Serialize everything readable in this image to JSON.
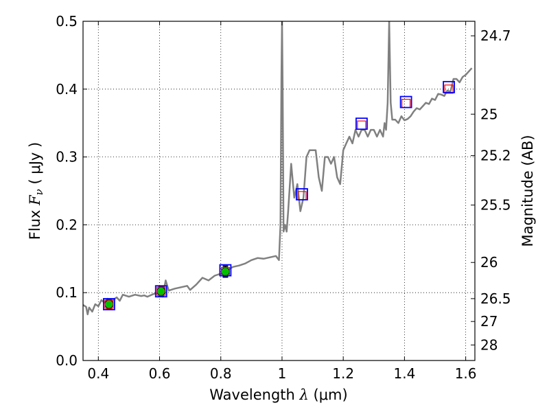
{
  "chart_data": {
    "type": "line",
    "xlabel_prefix": "Wavelength  ",
    "xlabel_symbol": "λ",
    "xlabel_unit": " (μm)",
    "ylabel_prefix": "Flux  ",
    "ylabel_symbol": "F",
    "ylabel_sub": "ν",
    "ylabel_unit": "  ( μJy )",
    "y2label": "Magnitude (AB)",
    "xlim": [
      0.35,
      1.63
    ],
    "ylim": [
      0.0,
      0.5
    ],
    "grid": true,
    "x_ticks": [
      0.4,
      0.6,
      0.8,
      1.0,
      1.2,
      1.4,
      1.6
    ],
    "x_tick_labels": [
      "0.4",
      "0.6",
      "0.8",
      "1",
      "1.2",
      "1.4",
      "1.6"
    ],
    "y_ticks": [
      0.0,
      0.1,
      0.2,
      0.3,
      0.4,
      0.5
    ],
    "y_tick_labels": [
      "0.0",
      "0.1",
      "0.2",
      "0.3",
      "0.4",
      "0.5"
    ],
    "y2_ticks": [
      {
        "label": "24.7",
        "flux": 0.4786
      },
      {
        "label": "25",
        "flux": 0.3631
      },
      {
        "label": "25.2",
        "flux": 0.302
      },
      {
        "label": "25.5",
        "flux": 0.2291
      },
      {
        "label": "26",
        "flux": 0.1445
      },
      {
        "label": "26.5",
        "flux": 0.0912
      },
      {
        "label": "27",
        "flux": 0.0575
      },
      {
        "label": "28",
        "flux": 0.0229
      }
    ],
    "series": [
      {
        "kind": "model-spectrum",
        "color": "#808080",
        "x": [
          0.35,
          0.36,
          0.365,
          0.37,
          0.38,
          0.39,
          0.4,
          0.41,
          0.42,
          0.43,
          0.44,
          0.45,
          0.46,
          0.47,
          0.48,
          0.5,
          0.52,
          0.54,
          0.55,
          0.56,
          0.58,
          0.6,
          0.61,
          0.62,
          0.63,
          0.65,
          0.67,
          0.69,
          0.7,
          0.72,
          0.74,
          0.76,
          0.78,
          0.8,
          0.82,
          0.84,
          0.86,
          0.88,
          0.9,
          0.92,
          0.94,
          0.96,
          0.98,
          0.99,
          0.995,
          0.998,
          1.0,
          1.002,
          1.005,
          1.01,
          1.015,
          1.02,
          1.03,
          1.04,
          1.05,
          1.06,
          1.07,
          1.08,
          1.09,
          1.1,
          1.11,
          1.12,
          1.13,
          1.14,
          1.15,
          1.16,
          1.17,
          1.18,
          1.19,
          1.2,
          1.21,
          1.22,
          1.23,
          1.24,
          1.25,
          1.26,
          1.27,
          1.28,
          1.29,
          1.3,
          1.31,
          1.32,
          1.33,
          1.335,
          1.34,
          1.345,
          1.35,
          1.355,
          1.36,
          1.37,
          1.38,
          1.39,
          1.4,
          1.41,
          1.42,
          1.43,
          1.44,
          1.45,
          1.46,
          1.47,
          1.48,
          1.49,
          1.5,
          1.51,
          1.52,
          1.53,
          1.54,
          1.55,
          1.56,
          1.57,
          1.58,
          1.59,
          1.6,
          1.61,
          1.62
        ],
        "y": [
          0.082,
          0.079,
          0.068,
          0.078,
          0.072,
          0.083,
          0.08,
          0.089,
          0.085,
          0.091,
          0.086,
          0.09,
          0.093,
          0.088,
          0.097,
          0.094,
          0.097,
          0.095,
          0.096,
          0.094,
          0.098,
          0.1,
          0.094,
          0.118,
          0.103,
          0.106,
          0.108,
          0.11,
          0.104,
          0.112,
          0.122,
          0.118,
          0.125,
          0.128,
          0.133,
          0.138,
          0.14,
          0.143,
          0.148,
          0.151,
          0.15,
          0.152,
          0.154,
          0.148,
          0.2,
          0.42,
          0.5,
          0.4,
          0.19,
          0.2,
          0.19,
          0.22,
          0.29,
          0.24,
          0.26,
          0.22,
          0.24,
          0.3,
          0.31,
          0.31,
          0.31,
          0.27,
          0.25,
          0.3,
          0.3,
          0.29,
          0.3,
          0.27,
          0.26,
          0.31,
          0.32,
          0.33,
          0.32,
          0.34,
          0.33,
          0.34,
          0.34,
          0.33,
          0.34,
          0.34,
          0.33,
          0.34,
          0.33,
          0.35,
          0.34,
          0.38,
          0.5,
          0.38,
          0.355,
          0.355,
          0.35,
          0.36,
          0.354,
          0.356,
          0.36,
          0.367,
          0.372,
          0.37,
          0.375,
          0.38,
          0.378,
          0.386,
          0.384,
          0.393,
          0.392,
          0.39,
          0.398,
          0.396,
          0.415,
          0.415,
          0.41,
          0.418,
          0.421,
          0.426,
          0.431
        ]
      },
      {
        "kind": "observed-detections",
        "color": "#00c000",
        "x": [
          0.435,
          0.605,
          0.815
        ],
        "y": [
          0.083,
          0.102,
          0.131
        ],
        "yerr": [
          0.007,
          0.007,
          0.008
        ]
      },
      {
        "kind": "model-points-red",
        "color": "#ff0000",
        "x": [
          0.435,
          0.605,
          0.815,
          1.065,
          1.26,
          1.405,
          1.545
        ],
        "y": [
          0.083,
          0.102,
          0.131,
          0.243,
          0.347,
          0.379,
          0.4
        ]
      },
      {
        "kind": "model-points-blue",
        "color": "#0000ff",
        "x": [
          0.435,
          0.605,
          0.815,
          1.065,
          1.26,
          1.405,
          1.545
        ],
        "y": [
          0.083,
          0.102,
          0.133,
          0.245,
          0.349,
          0.381,
          0.403
        ]
      }
    ]
  }
}
